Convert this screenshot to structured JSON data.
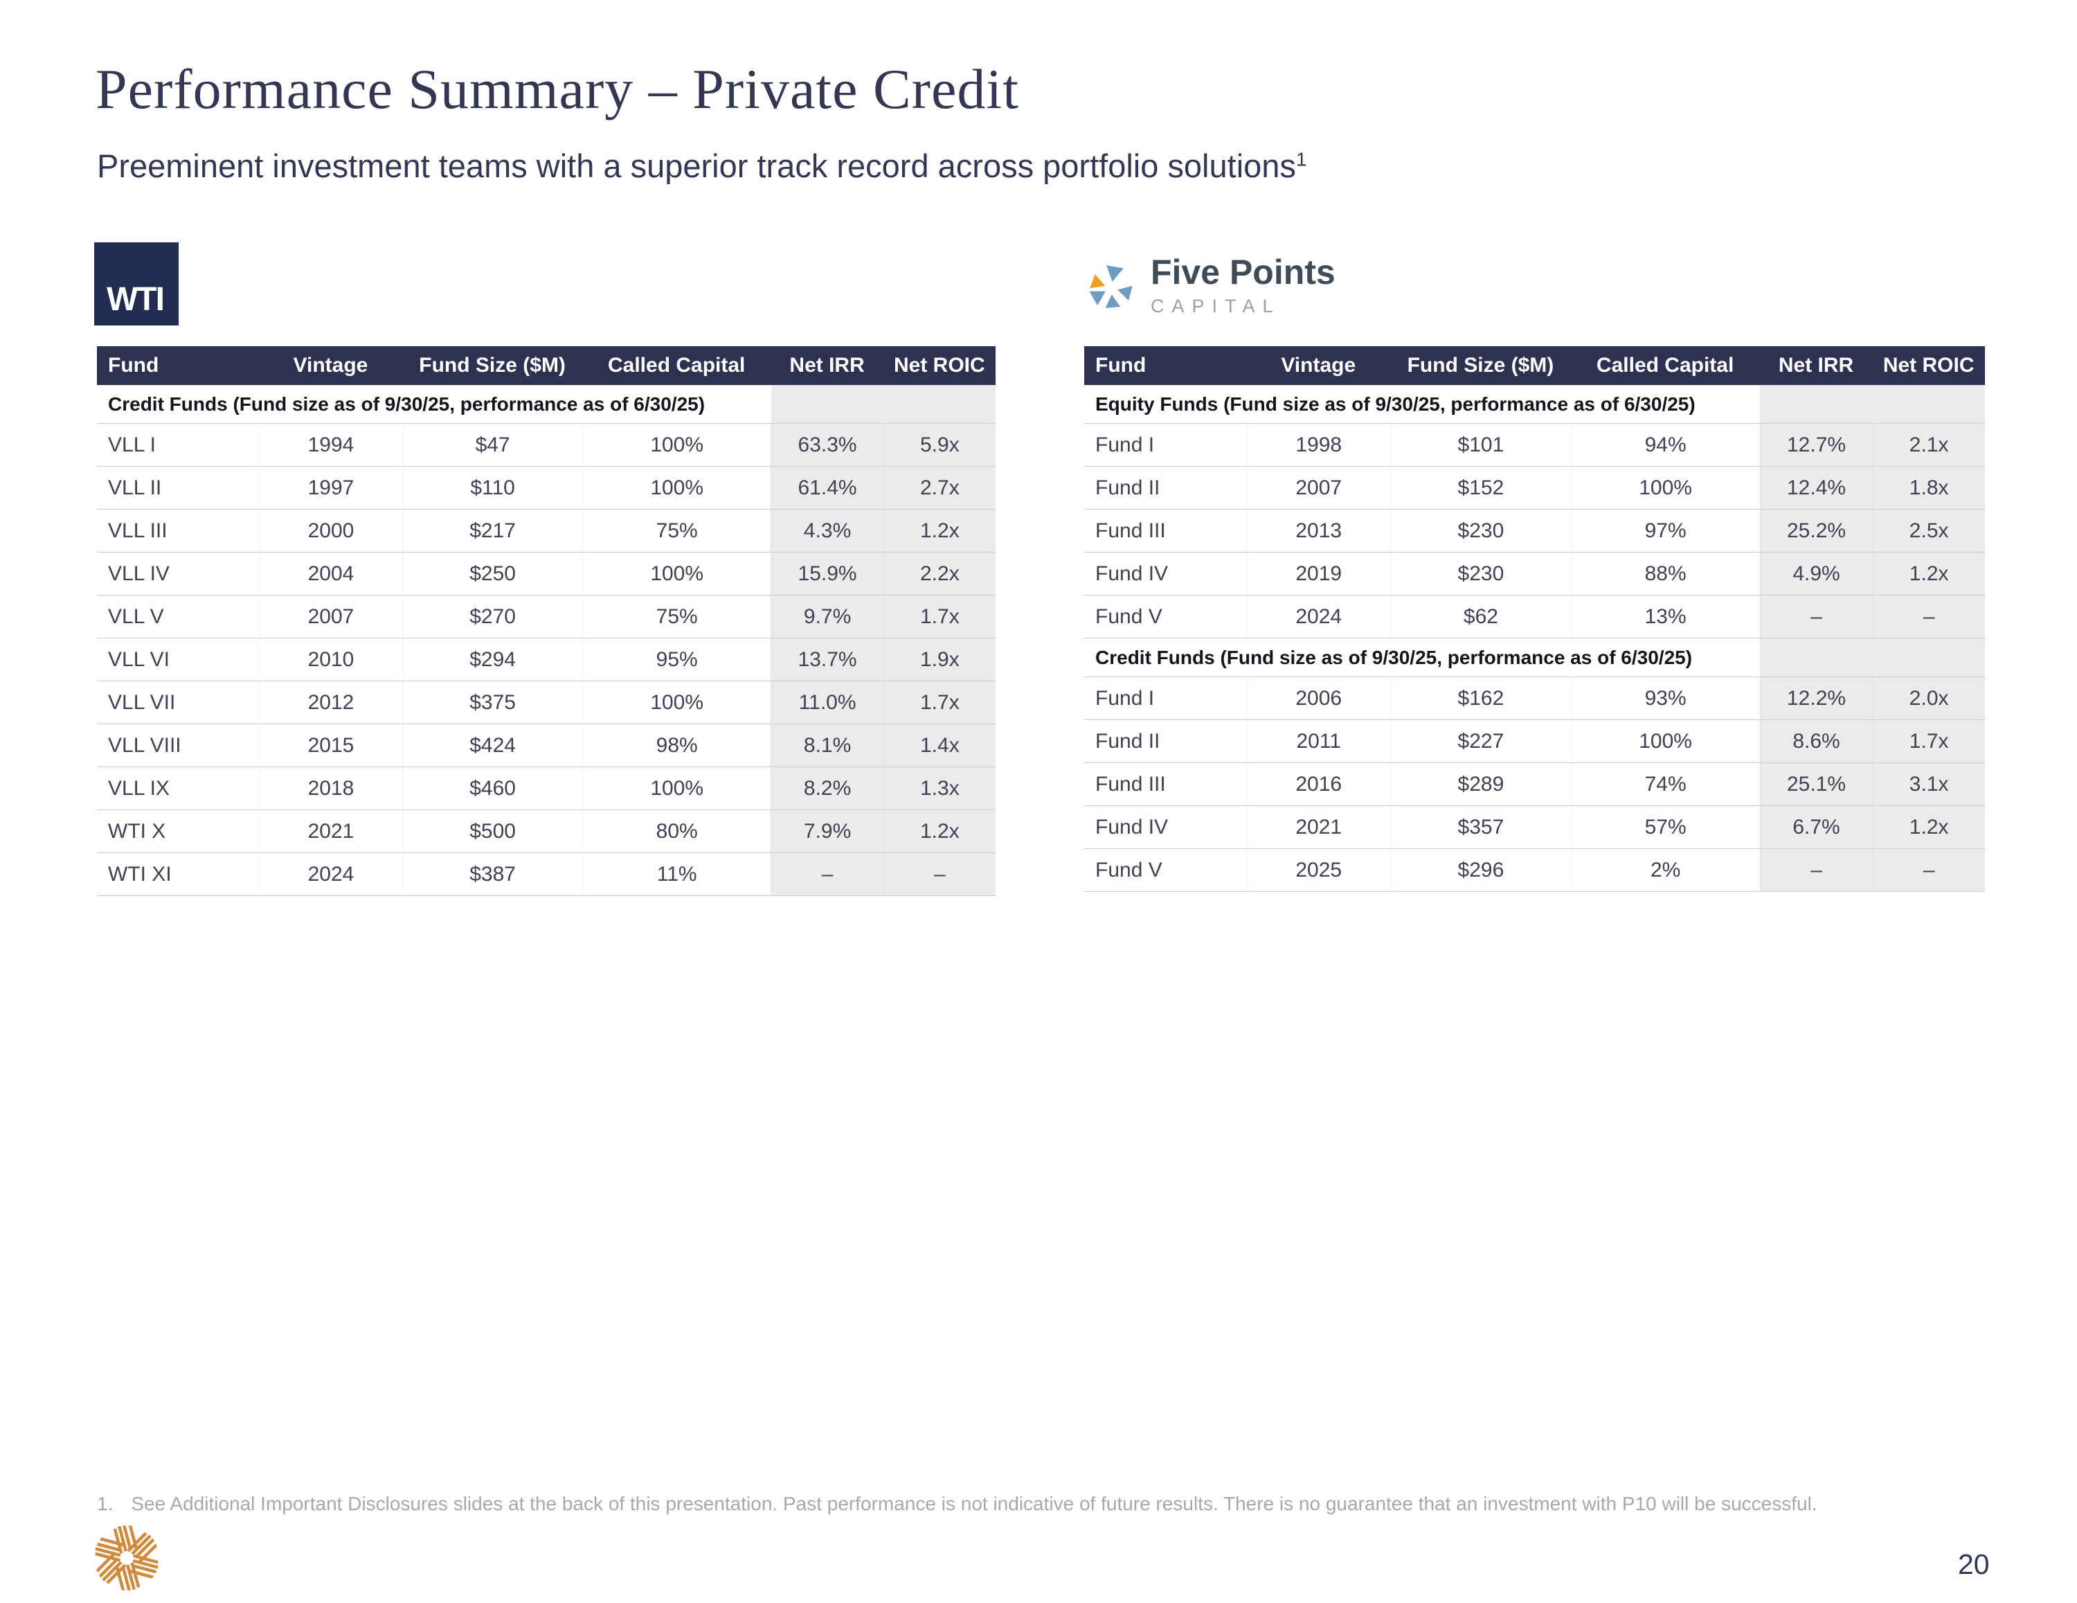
{
  "slide": {
    "title": "Performance Summary – Private Credit",
    "subtitle": "Preeminent investment teams with a superior track record across portfolio solutions",
    "subtitle_footnote_marker": "1",
    "footnote_marker": "1.",
    "footnote_text": "See Additional Important Disclosures slides at the back of this presentation. Past performance is not indicative of future results. There is no guarantee that an investment with P10 will be successful.",
    "page_number": "20"
  },
  "logos": {
    "wti_text": "WTI",
    "five_points_name": "Five Points",
    "five_points_sub": "CAPITAL"
  },
  "colors": {
    "header_navy": "#2f3150",
    "title_navy": "#333754",
    "wti_navy": "#202c50",
    "gray_band": "#ebebeb",
    "five_points_blue": "#6d9cc0",
    "five_points_gold": "#f0a01e",
    "p10_orange": "#cf8a3c",
    "footnote_gray": "#a8a8a8"
  },
  "wti_table": {
    "columns": [
      "Fund",
      "Vintage",
      "Fund Size ($M)",
      "Called Capital",
      "Net IRR",
      "Net ROIC"
    ],
    "sections": [
      {
        "label": "Credit Funds (Fund size as of 9/30/25, performance as of 6/30/25)",
        "rows": [
          [
            "VLL I",
            "1994",
            "$47",
            "100%",
            "63.3%",
            "5.9x"
          ],
          [
            "VLL II",
            "1997",
            "$110",
            "100%",
            "61.4%",
            "2.7x"
          ],
          [
            "VLL III",
            "2000",
            "$217",
            "75%",
            "4.3%",
            "1.2x"
          ],
          [
            "VLL IV",
            "2004",
            "$250",
            "100%",
            "15.9%",
            "2.2x"
          ],
          [
            "VLL V",
            "2007",
            "$270",
            "75%",
            "9.7%",
            "1.7x"
          ],
          [
            "VLL VI",
            "2010",
            "$294",
            "95%",
            "13.7%",
            "1.9x"
          ],
          [
            "VLL VII",
            "2012",
            "$375",
            "100%",
            "11.0%",
            "1.7x"
          ],
          [
            "VLL VIII",
            "2015",
            "$424",
            "98%",
            "8.1%",
            "1.4x"
          ],
          [
            "VLL IX",
            "2018",
            "$460",
            "100%",
            "8.2%",
            "1.3x"
          ],
          [
            "WTI X",
            "2021",
            "$500",
            "80%",
            "7.9%",
            "1.2x"
          ],
          [
            "WTI XI",
            "2024",
            "$387",
            "11%",
            "–",
            "–"
          ]
        ]
      }
    ]
  },
  "five_points_table": {
    "columns": [
      "Fund",
      "Vintage",
      "Fund Size ($M)",
      "Called Capital",
      "Net IRR",
      "Net ROIC"
    ],
    "sections": [
      {
        "label": "Equity Funds (Fund size as of 9/30/25, performance as of 6/30/25)",
        "rows": [
          [
            "Fund I",
            "1998",
            "$101",
            "94%",
            "12.7%",
            "2.1x"
          ],
          [
            "Fund II",
            "2007",
            "$152",
            "100%",
            "12.4%",
            "1.8x"
          ],
          [
            "Fund III",
            "2013",
            "$230",
            "97%",
            "25.2%",
            "2.5x"
          ],
          [
            "Fund IV",
            "2019",
            "$230",
            "88%",
            "4.9%",
            "1.2x"
          ],
          [
            "Fund V",
            "2024",
            "$62",
            "13%",
            "–",
            "–"
          ]
        ]
      },
      {
        "label": "Credit Funds (Fund size as of 9/30/25, performance as of 6/30/25)",
        "rows": [
          [
            "Fund I",
            "2006",
            "$162",
            "93%",
            "12.2%",
            "2.0x"
          ],
          [
            "Fund II",
            "2011",
            "$227",
            "100%",
            "8.6%",
            "1.7x"
          ],
          [
            "Fund III",
            "2016",
            "$289",
            "74%",
            "25.1%",
            "3.1x"
          ],
          [
            "Fund IV",
            "2021",
            "$357",
            "57%",
            "6.7%",
            "1.2x"
          ],
          [
            "Fund V",
            "2025",
            "$296",
            "2%",
            "–",
            "–"
          ]
        ]
      }
    ]
  }
}
